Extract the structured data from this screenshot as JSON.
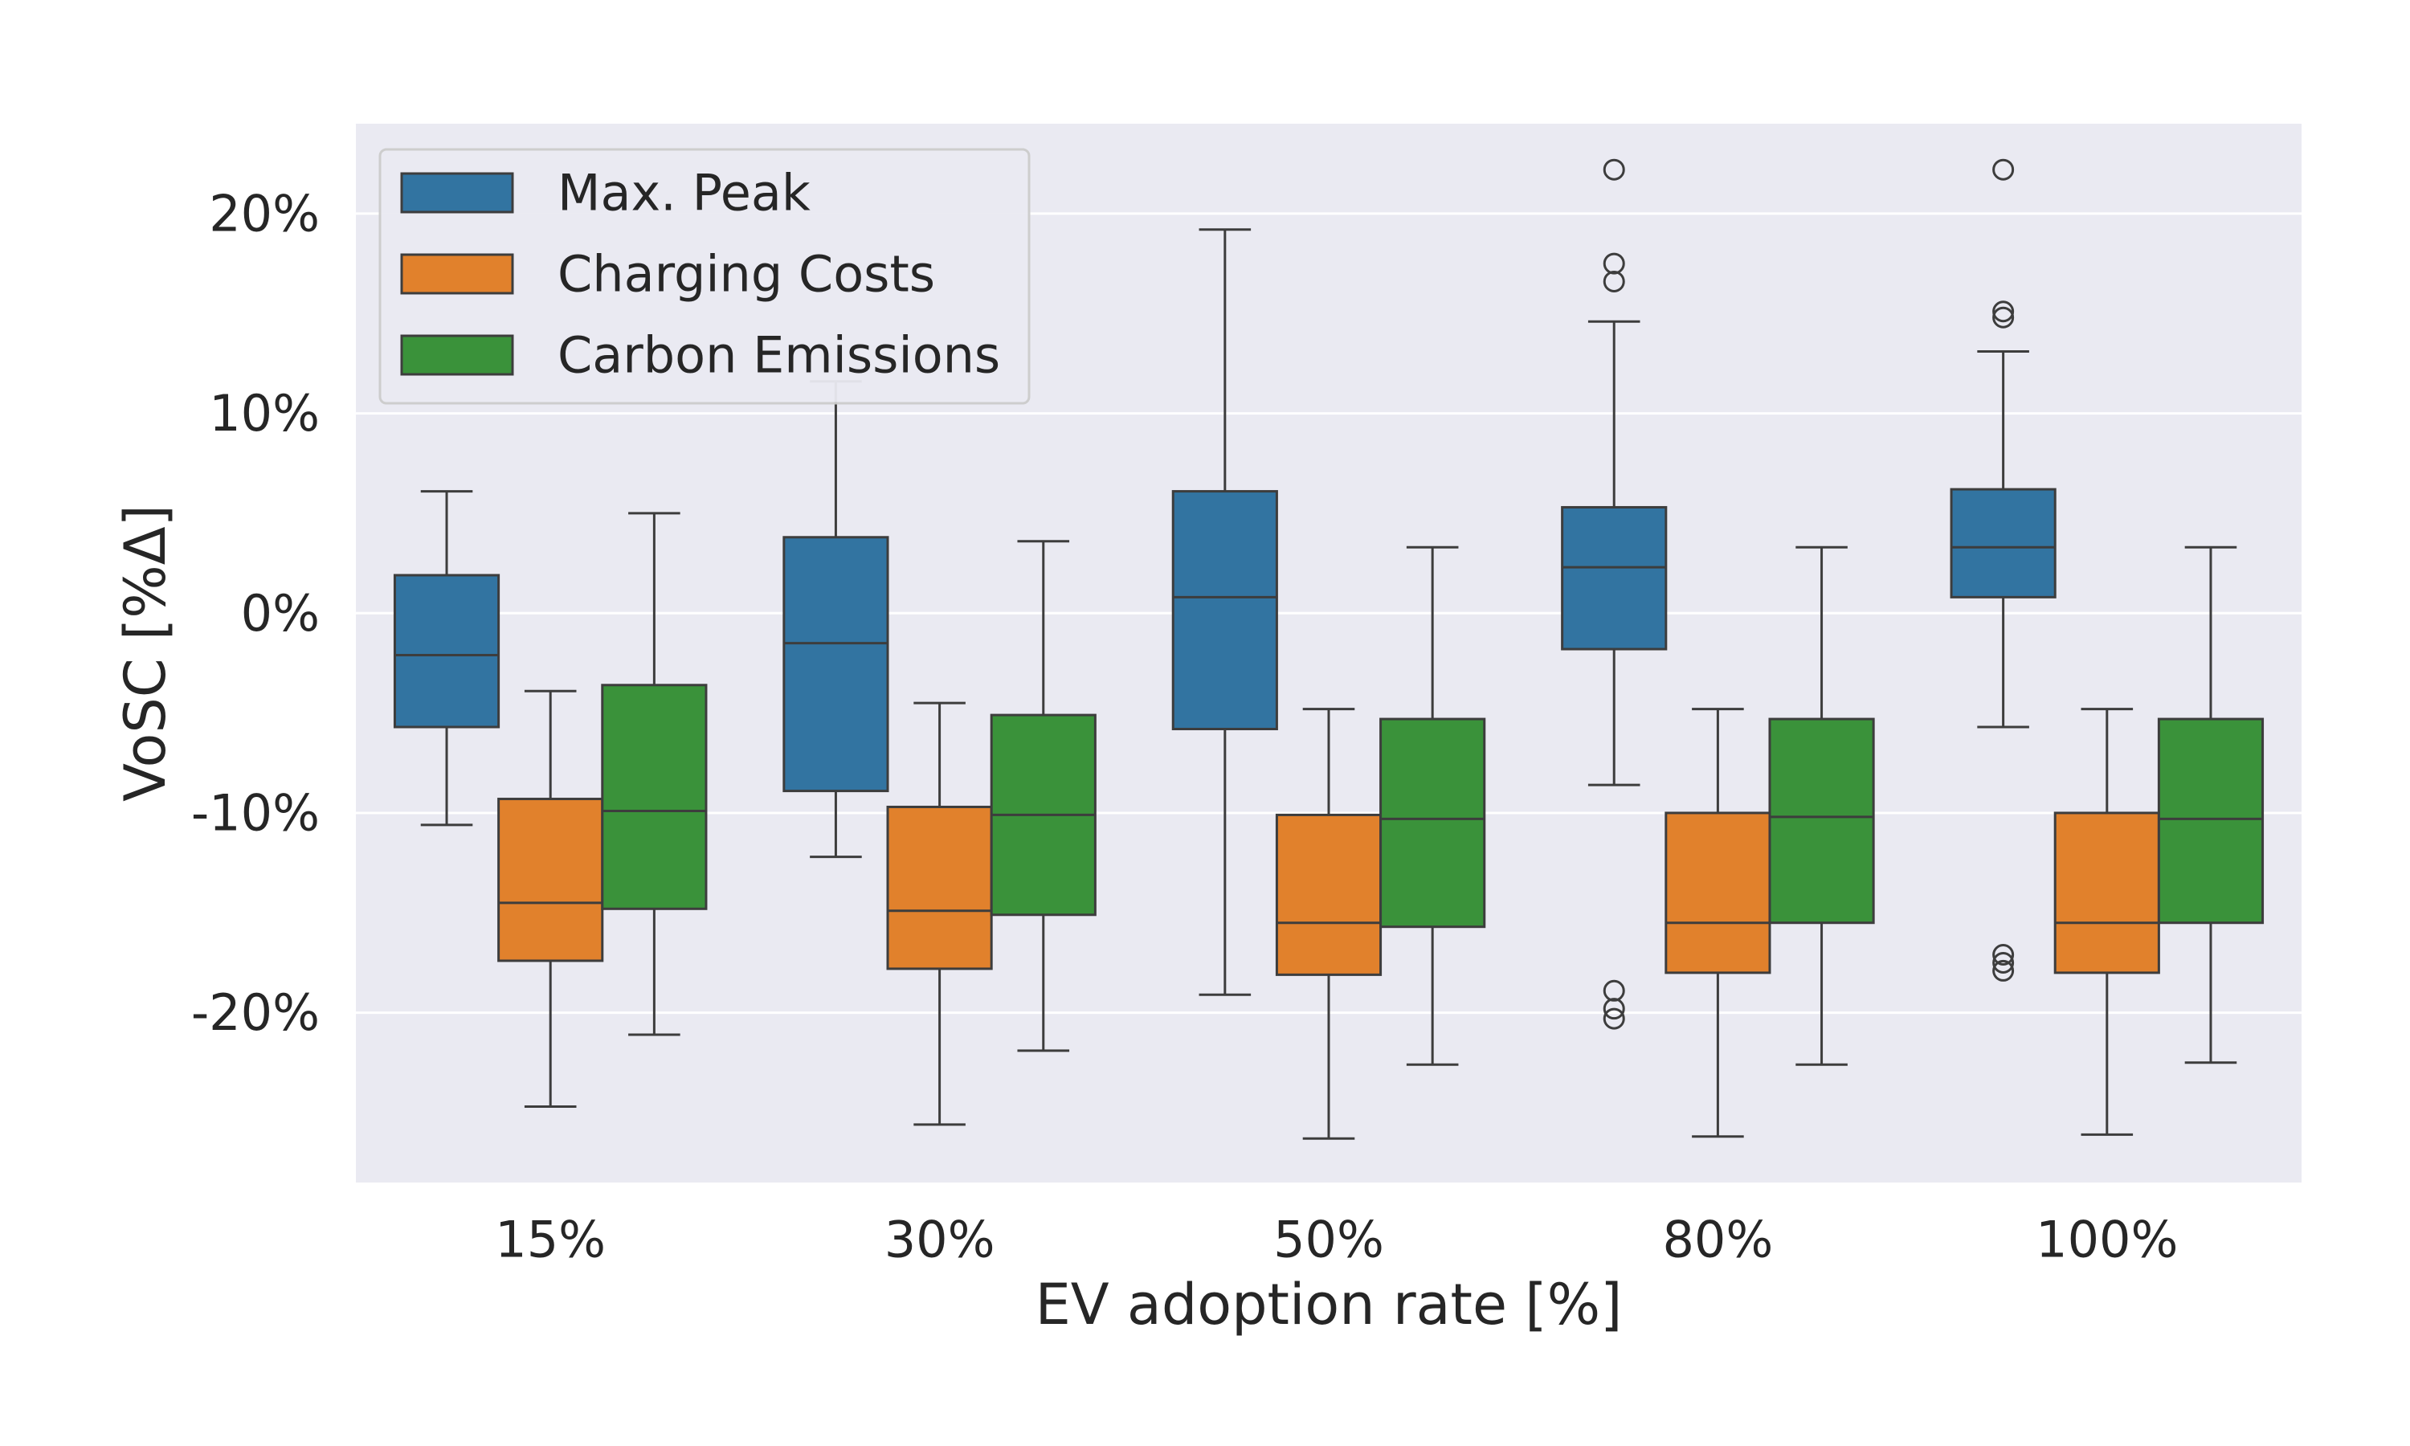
{
  "chart_data": {
    "type": "box",
    "xlabel": "EV adoption rate [%]",
    "ylabel": "VoSC [%Δ]",
    "categories": [
      "15%",
      "30%",
      "50%",
      "80%",
      "100%"
    ],
    "y_ticks": [
      {
        "value": 20,
        "label": "20%"
      },
      {
        "value": 10,
        "label": "10%"
      },
      {
        "value": 0,
        "label": "0%"
      },
      {
        "value": -10,
        "label": "-10%"
      },
      {
        "value": -20,
        "label": "-20%"
      }
    ],
    "ylim": [
      -28.5,
      24.5
    ],
    "grid": true,
    "legend_position": "top-left",
    "series": [
      {
        "name": "Max. Peak",
        "color": "#3274a1",
        "boxes": [
          {
            "whisker_low": -10.6,
            "q1": -5.7,
            "median": -2.1,
            "q3": 1.9,
            "whisker_high": 6.1,
            "outliers": []
          },
          {
            "whisker_low": -12.2,
            "q1": -8.9,
            "median": -1.5,
            "q3": 3.8,
            "whisker_high": 11.6,
            "outliers": []
          },
          {
            "whisker_low": -19.1,
            "q1": -5.8,
            "median": 0.8,
            "q3": 6.1,
            "whisker_high": 19.2,
            "outliers": []
          },
          {
            "whisker_low": -8.6,
            "q1": -1.8,
            "median": 2.3,
            "q3": 5.3,
            "whisker_high": 14.6,
            "outliers": [
              22.2,
              17.5,
              16.6,
              -18.9,
              -19.8,
              -20.3
            ]
          },
          {
            "whisker_low": -5.7,
            "q1": 0.8,
            "median": 3.3,
            "q3": 6.2,
            "whisker_high": 13.1,
            "outliers": [
              22.2,
              15.1,
              14.8,
              -17.1,
              -17.5,
              -17.9
            ]
          }
        ]
      },
      {
        "name": "Charging Costs",
        "color": "#e1812c",
        "boxes": [
          {
            "whisker_low": -24.7,
            "q1": -17.4,
            "median": -14.5,
            "q3": -9.3,
            "whisker_high": -3.9,
            "outliers": []
          },
          {
            "whisker_low": -25.6,
            "q1": -17.8,
            "median": -14.9,
            "q3": -9.7,
            "whisker_high": -4.5,
            "outliers": []
          },
          {
            "whisker_low": -26.3,
            "q1": -18.1,
            "median": -15.5,
            "q3": -10.1,
            "whisker_high": -4.8,
            "outliers": []
          },
          {
            "whisker_low": -26.2,
            "q1": -18.0,
            "median": -15.5,
            "q3": -10.0,
            "whisker_high": -4.8,
            "outliers": []
          },
          {
            "whisker_low": -26.1,
            "q1": -18.0,
            "median": -15.5,
            "q3": -10.0,
            "whisker_high": -4.8,
            "outliers": []
          }
        ]
      },
      {
        "name": "Carbon Emissions",
        "color": "#3a923a",
        "boxes": [
          {
            "whisker_low": -21.1,
            "q1": -14.8,
            "median": -9.9,
            "q3": -3.6,
            "whisker_high": 5.0,
            "outliers": []
          },
          {
            "whisker_low": -21.9,
            "q1": -15.1,
            "median": -10.1,
            "q3": -5.1,
            "whisker_high": 3.6,
            "outliers": []
          },
          {
            "whisker_low": -22.6,
            "q1": -15.7,
            "median": -10.3,
            "q3": -5.3,
            "whisker_high": 3.3,
            "outliers": []
          },
          {
            "whisker_low": -22.6,
            "q1": -15.5,
            "median": -10.2,
            "q3": -5.3,
            "whisker_high": 3.3,
            "outliers": []
          },
          {
            "whisker_low": -22.5,
            "q1": -15.5,
            "median": -10.3,
            "q3": -5.3,
            "whisker_high": 3.3,
            "outliers": []
          }
        ]
      }
    ]
  }
}
